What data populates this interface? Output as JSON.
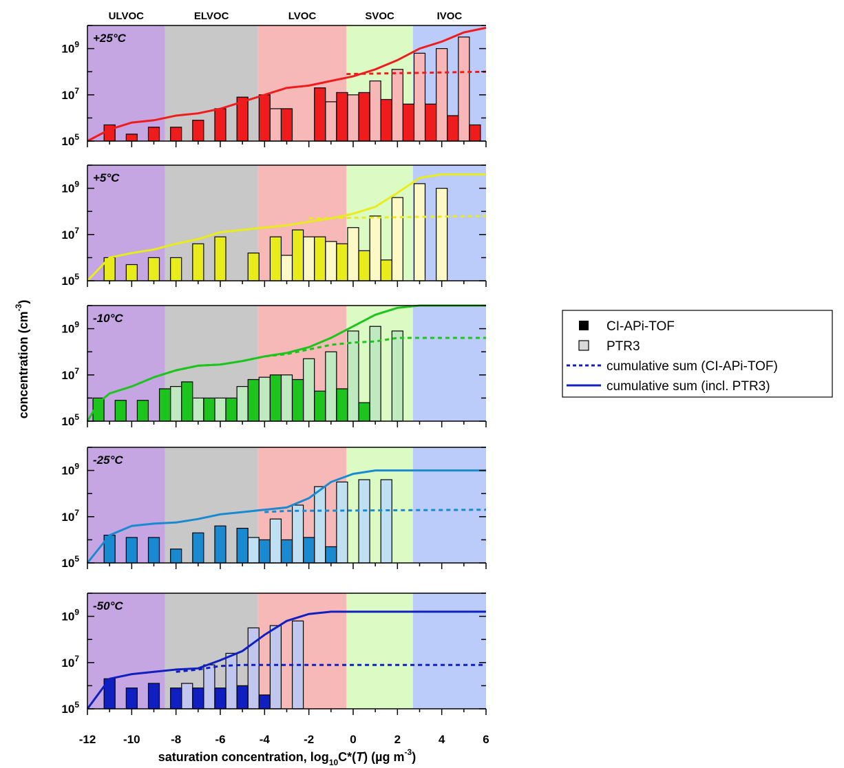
{
  "chart_data": {
    "type": "bar",
    "xlabel": "saturation concentration, log10C*(T) (µg m-3)",
    "xlabel_parts": {
      "pre": "saturation concentration, log",
      "sub": "10",
      "mid": "C*(",
      "it": "T",
      "post": ") (µg m",
      "sup": "-3",
      "end": ")"
    },
    "ylabel": "concentration (cm-3)",
    "ylabel_parts": {
      "pre": "concentration (cm",
      "sup": "-3",
      "end": ")"
    },
    "xlim": [
      -12,
      6
    ],
    "ylim_log10": [
      5,
      10
    ],
    "y_scale": "log",
    "x_ticks": [
      "-12",
      "-10",
      "-8",
      "-6",
      "-4",
      "-2",
      "0",
      "2",
      "4",
      "6"
    ],
    "y_tick_labels": [
      {
        "base": "10",
        "exp": "5"
      },
      {
        "base": "10",
        "exp": "7"
      },
      {
        "base": "10",
        "exp": "9"
      }
    ],
    "volatility_classes": [
      {
        "label": "ULVOC",
        "x_from": -12,
        "x_to": -8.5,
        "color": "#c5a6e3"
      },
      {
        "label": "ELVOC",
        "x_from": -8.5,
        "x_to": -4.3,
        "color": "#c8c8c8"
      },
      {
        "label": "LVOC",
        "x_from": -4.3,
        "x_to": -0.3,
        "color": "#f7b8b8"
      },
      {
        "label": "SVOC",
        "x_from": -0.3,
        "x_to": 2.7,
        "color": "#dcfac4"
      },
      {
        "label": "IVOC",
        "x_from": 2.7,
        "x_to": 6,
        "color": "#bcccfa"
      }
    ],
    "legend": {
      "placement": "right",
      "items": [
        {
          "label": "CI-APi-TOF",
          "kind": "filled-square"
        },
        {
          "label": "PTR3",
          "kind": "open-square"
        },
        {
          "label": "cumulative sum (CI-APi-TOF)",
          "kind": "dashed-line"
        },
        {
          "label": "cumulative sum (incl. PTR3)",
          "kind": "solid-line"
        }
      ],
      "line_color": "#1020c0"
    },
    "panels": [
      {
        "label": "+25°C",
        "color": "#ee1c1c",
        "light": "#f8b7b7",
        "ci": [
          [
            -11,
            5.7
          ],
          [
            -10,
            5.3
          ],
          [
            -9,
            5.6
          ],
          [
            -8,
            5.6
          ],
          [
            -7,
            5.9
          ],
          [
            -6,
            6.4
          ],
          [
            -5,
            6.9
          ],
          [
            -4,
            7.0
          ],
          [
            -3,
            6.4
          ],
          [
            -1.5,
            7.3
          ],
          [
            -0.5,
            7.1
          ],
          [
            0.5,
            7.1
          ],
          [
            1.5,
            6.8
          ],
          [
            2.5,
            6.6
          ],
          [
            3.5,
            6.6
          ],
          [
            4.5,
            6.1
          ],
          [
            5.5,
            5.7
          ]
        ],
        "ptr": [
          [
            -3.5,
            6.4
          ],
          [
            -1,
            6.7
          ],
          [
            0,
            7.0
          ],
          [
            1,
            7.6
          ],
          [
            2,
            8.1
          ],
          [
            3,
            8.8
          ],
          [
            4,
            9.0
          ],
          [
            5,
            9.5
          ]
        ],
        "cum_ci": [
          [
            -0.3,
            7.9
          ],
          [
            6,
            8.0
          ]
        ],
        "cum_total": [
          [
            -12,
            5.0
          ],
          [
            -11,
            5.5
          ],
          [
            -10,
            5.8
          ],
          [
            -9,
            5.9
          ],
          [
            -8,
            6.1
          ],
          [
            -7,
            6.2
          ],
          [
            -6,
            6.4
          ],
          [
            -5,
            6.7
          ],
          [
            -4,
            7.0
          ],
          [
            -3,
            7.3
          ],
          [
            -2,
            7.4
          ],
          [
            -1,
            7.6
          ],
          [
            0,
            7.8
          ],
          [
            1,
            8.1
          ],
          [
            2,
            8.5
          ],
          [
            3,
            9.0
          ],
          [
            4,
            9.3
          ],
          [
            5,
            9.7
          ],
          [
            6,
            9.9
          ]
        ]
      },
      {
        "label": "+5°C",
        "color": "#e9ec1c",
        "light": "#fcf9c7",
        "ci": [
          [
            -11,
            6.0
          ],
          [
            -10,
            5.7
          ],
          [
            -9,
            6.0
          ],
          [
            -8,
            6.0
          ],
          [
            -7,
            6.6
          ],
          [
            -6,
            6.9
          ],
          [
            -4.5,
            6.2
          ],
          [
            -3.5,
            6.9
          ],
          [
            -2.5,
            7.2
          ],
          [
            -1.5,
            6.9
          ],
          [
            -0.5,
            6.6
          ],
          [
            0.5,
            6.3
          ],
          [
            1.5,
            5.9
          ]
        ],
        "ptr": [
          [
            -3,
            6.1
          ],
          [
            -2,
            6.9
          ],
          [
            -1,
            6.7
          ],
          [
            0,
            7.3
          ],
          [
            1,
            7.8
          ],
          [
            2,
            8.6
          ],
          [
            3,
            9.2
          ],
          [
            4,
            9.0
          ]
        ],
        "cum_ci": [
          [
            -2,
            7.7
          ],
          [
            6,
            7.8
          ]
        ],
        "cum_total": [
          [
            -12,
            5.0
          ],
          [
            -11,
            6.0
          ],
          [
            -10,
            6.2
          ],
          [
            -9,
            6.35
          ],
          [
            -8,
            6.6
          ],
          [
            -7,
            6.8
          ],
          [
            -6,
            7.1
          ],
          [
            -5,
            7.2
          ],
          [
            -4,
            7.3
          ],
          [
            -3,
            7.4
          ],
          [
            -2,
            7.55
          ],
          [
            -1,
            7.7
          ],
          [
            0,
            7.9
          ],
          [
            1,
            8.2
          ],
          [
            2,
            8.8
          ],
          [
            3,
            9.45
          ],
          [
            4,
            9.6
          ],
          [
            5,
            9.6
          ],
          [
            6,
            9.6
          ]
        ]
      },
      {
        "label": "-10°C",
        "color": "#1ec41e",
        "light": "#bfe9bf",
        "ci": [
          [
            -11.5,
            6.0
          ],
          [
            -10.5,
            5.9
          ],
          [
            -9.5,
            5.9
          ],
          [
            -8.5,
            6.4
          ],
          [
            -7.5,
            6.7
          ],
          [
            -6.5,
            6.0
          ],
          [
            -5.5,
            6.0
          ],
          [
            -4.5,
            6.8
          ],
          [
            -3.5,
            7.0
          ],
          [
            -2.5,
            6.8
          ],
          [
            -1.5,
            6.3
          ],
          [
            -0.5,
            6.4
          ],
          [
            0.5,
            5.8
          ]
        ],
        "ptr": [
          [
            -8,
            6.5
          ],
          [
            -7,
            6.0
          ],
          [
            -6,
            6.0
          ],
          [
            -5,
            6.5
          ],
          [
            -4,
            6.9
          ],
          [
            -3,
            7.0
          ],
          [
            -2,
            7.7
          ],
          [
            -1,
            8.0
          ],
          [
            0,
            8.9
          ],
          [
            1,
            9.1
          ],
          [
            2,
            8.9
          ]
        ],
        "cum_ci": [
          [
            -9,
            6.9
          ],
          [
            -8,
            7.2
          ],
          [
            -7,
            7.4
          ],
          [
            -6,
            7.45
          ],
          [
            -5,
            7.6
          ],
          [
            -4,
            7.8
          ],
          [
            -3,
            7.9
          ],
          [
            -2,
            8.1
          ],
          [
            -1,
            8.3
          ],
          [
            0,
            8.4
          ],
          [
            1,
            8.45
          ],
          [
            2,
            8.6
          ],
          [
            3,
            8.6
          ],
          [
            4,
            8.6
          ],
          [
            5,
            8.6
          ],
          [
            6,
            8.6
          ]
        ],
        "cum_total": [
          [
            -12,
            5.0
          ],
          [
            -11.5,
            5.8
          ],
          [
            -11,
            6.2
          ],
          [
            -10,
            6.5
          ],
          [
            -9,
            6.9
          ],
          [
            -8,
            7.2
          ],
          [
            -7,
            7.4
          ],
          [
            -6,
            7.45
          ],
          [
            -5,
            7.6
          ],
          [
            -4,
            7.8
          ],
          [
            -3,
            7.95
          ],
          [
            -2,
            8.2
          ],
          [
            -1,
            8.6
          ],
          [
            0,
            9.1
          ],
          [
            1,
            9.6
          ],
          [
            2,
            9.9
          ],
          [
            3,
            10.0
          ],
          [
            4,
            10.0
          ],
          [
            5,
            10.0
          ],
          [
            6,
            10.0
          ]
        ]
      },
      {
        "label": "-25°C",
        "color": "#1a8ad0",
        "light": "#bfe0f3",
        "ci": [
          [
            -11,
            6.2
          ],
          [
            -10,
            6.1
          ],
          [
            -9,
            6.1
          ],
          [
            -8,
            5.6
          ],
          [
            -7,
            6.3
          ],
          [
            -6,
            6.6
          ],
          [
            -5,
            6.5
          ],
          [
            -4,
            6.0
          ],
          [
            -3,
            6.0
          ],
          [
            -2,
            6.1
          ],
          [
            -1,
            5.7
          ]
        ],
        "ptr": [
          [
            -4.5,
            6.1
          ],
          [
            -3.5,
            6.9
          ],
          [
            -2.5,
            7.5
          ],
          [
            -1.5,
            8.3
          ],
          [
            -0.5,
            8.5
          ],
          [
            0.5,
            8.6
          ],
          [
            1.5,
            8.6
          ]
        ],
        "cum_ci": [
          [
            -4,
            7.2
          ],
          [
            -3,
            7.25
          ],
          [
            6,
            7.3
          ]
        ],
        "cum_total": [
          [
            -12,
            5.0
          ],
          [
            -11,
            6.2
          ],
          [
            -10,
            6.6
          ],
          [
            -9,
            6.7
          ],
          [
            -8,
            6.75
          ],
          [
            -7,
            6.9
          ],
          [
            -6,
            7.1
          ],
          [
            -5,
            7.2
          ],
          [
            -4,
            7.3
          ],
          [
            -3,
            7.4
          ],
          [
            -2,
            7.8
          ],
          [
            -1,
            8.5
          ],
          [
            0,
            8.85
          ],
          [
            1,
            9.0
          ],
          [
            2,
            9.0
          ],
          [
            3,
            9.0
          ],
          [
            4,
            9.0
          ],
          [
            5,
            9.0
          ],
          [
            6,
            9.0
          ]
        ]
      },
      {
        "label": "-50°C",
        "color": "#1020c0",
        "light": "#c0c6ee",
        "ci": [
          [
            -11,
            6.3
          ],
          [
            -10,
            5.9
          ],
          [
            -9,
            6.1
          ],
          [
            -8,
            5.9
          ],
          [
            -7,
            5.9
          ],
          [
            -6,
            5.9
          ],
          [
            -5,
            6.0
          ],
          [
            -4,
            5.6
          ]
        ],
        "ptr": [
          [
            -7.5,
            6.1
          ],
          [
            -6.5,
            6.9
          ],
          [
            -5.5,
            7.4
          ],
          [
            -4.5,
            8.5
          ],
          [
            -3.5,
            8.6
          ],
          [
            -2.5,
            8.8
          ]
        ],
        "cum_ci": [
          [
            -8,
            6.6
          ],
          [
            -7,
            6.7
          ],
          [
            -6,
            6.85
          ],
          [
            -5,
            6.9
          ],
          [
            -4,
            6.9
          ],
          [
            6,
            6.9
          ]
        ],
        "cum_total": [
          [
            -12,
            5.0
          ],
          [
            -11,
            6.3
          ],
          [
            -10,
            6.5
          ],
          [
            -9,
            6.6
          ],
          [
            -8,
            6.7
          ],
          [
            -7,
            6.75
          ],
          [
            -6,
            7.1
          ],
          [
            -5,
            7.5
          ],
          [
            -4,
            8.2
          ],
          [
            -3,
            8.8
          ],
          [
            -2,
            9.1
          ],
          [
            -1,
            9.2
          ],
          [
            0,
            9.2
          ],
          [
            1,
            9.2
          ],
          [
            2,
            9.2
          ],
          [
            3,
            9.2
          ],
          [
            4,
            9.2
          ],
          [
            5,
            9.2
          ],
          [
            6,
            9.2
          ]
        ]
      }
    ]
  }
}
